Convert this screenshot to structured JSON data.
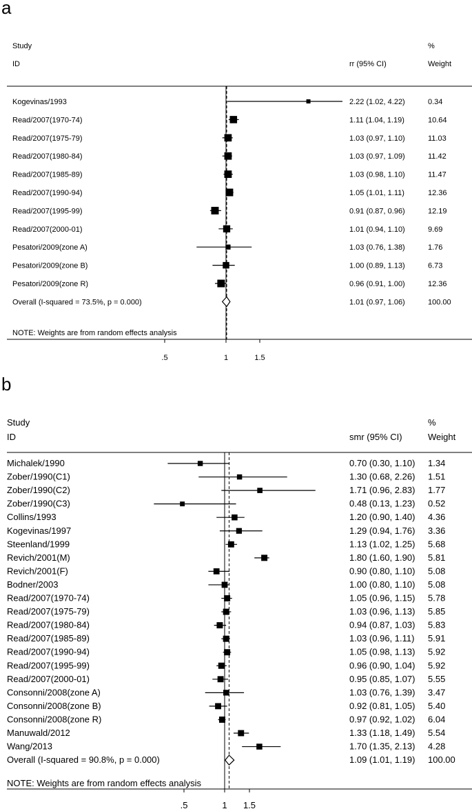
{
  "panels": [
    {
      "letter": "a",
      "hdr_study": "Study",
      "hdr_id": "ID",
      "hdr_est": "rr (95% CI)",
      "hdr_pct": "%",
      "hdr_weight": "Weight",
      "note": "NOTE: Weights are from random effects analysis"
    },
    {
      "letter": "b",
      "hdr_study": "Study",
      "hdr_id": "ID",
      "hdr_est": "smr (95% CI)",
      "hdr_pct": "%",
      "hdr_weight": "Weight",
      "note": "NOTE: Weights are from random effects analysis"
    }
  ],
  "chart_data": [
    {
      "type": "forest",
      "measure": "rr",
      "null_line": 1,
      "pooled_estimate": 1.01,
      "x_ticks": [
        {
          "value": 0.5,
          "label": ".5"
        },
        {
          "value": 1,
          "label": "1"
        },
        {
          "value": 1.5,
          "label": "1.5"
        }
      ],
      "studies": [
        {
          "id": "Kogevinas/1993",
          "est": 2.22,
          "lo": 1.02,
          "hi": 4.22,
          "ci_text": "2.22 (1.02, 4.22)",
          "weight": "0.34",
          "arrow": true
        },
        {
          "id": "Read/2007(1970-74)",
          "est": 1.11,
          "lo": 1.04,
          "hi": 1.19,
          "ci_text": "1.11 (1.04, 1.19)",
          "weight": "10.64"
        },
        {
          "id": "Read/2007(1975-79)",
          "est": 1.03,
          "lo": 0.97,
          "hi": 1.1,
          "ci_text": "1.03 (0.97, 1.10)",
          "weight": "11.03"
        },
        {
          "id": "Read/2007(1980-84)",
          "est": 1.03,
          "lo": 0.97,
          "hi": 1.09,
          "ci_text": "1.03 (0.97, 1.09)",
          "weight": "11.42"
        },
        {
          "id": "Read/2007(1985-89)",
          "est": 1.03,
          "lo": 0.98,
          "hi": 1.1,
          "ci_text": "1.03 (0.98, 1.10)",
          "weight": "11.47"
        },
        {
          "id": "Read/2007(1990-94)",
          "est": 1.05,
          "lo": 1.01,
          "hi": 1.11,
          "ci_text": "1.05 (1.01, 1.11)",
          "weight": "12.36"
        },
        {
          "id": "Read/2007(1995-99)",
          "est": 0.91,
          "lo": 0.87,
          "hi": 0.96,
          "ci_text": "0.91 (0.87, 0.96)",
          "weight": "12.19"
        },
        {
          "id": "Read/2007(2000-01)",
          "est": 1.01,
          "lo": 0.94,
          "hi": 1.1,
          "ci_text": "1.01 (0.94, 1.10)",
          "weight": "9.69"
        },
        {
          "id": "Pesatori/2009(zone A)",
          "est": 1.03,
          "lo": 0.76,
          "hi": 1.38,
          "ci_text": "1.03 (0.76, 1.38)",
          "weight": "1.76"
        },
        {
          "id": "Pesatori/2009(zone B)",
          "est": 1.0,
          "lo": 0.89,
          "hi": 1.13,
          "ci_text": "1.00 (0.89, 1.13)",
          "weight": "6.73"
        },
        {
          "id": "Pesatori/2009(zone R)",
          "est": 0.96,
          "lo": 0.91,
          "hi": 1.0,
          "ci_text": "0.96 (0.91, 1.00)",
          "weight": "12.36"
        }
      ],
      "overall": {
        "id": "Overall  (I-squared = 73.5%, p = 0.000)",
        "est": 1.01,
        "lo": 0.97,
        "hi": 1.06,
        "ci_text": "1.01 (0.97, 1.06)",
        "weight": "100.00"
      }
    },
    {
      "type": "forest",
      "measure": "smr",
      "null_line": 1,
      "pooled_estimate": 1.09,
      "x_ticks": [
        {
          "value": 0.5,
          "label": ".5"
        },
        {
          "value": 1,
          "label": "1"
        },
        {
          "value": 1.5,
          "label": "1.5"
        }
      ],
      "studies": [
        {
          "id": "Michalek/1990",
          "est": 0.7,
          "lo": 0.3,
          "hi": 1.1,
          "ci_text": "0.70 (0.30, 1.10)",
          "weight": "1.34"
        },
        {
          "id": "Zober/1990(C1)",
          "est": 1.3,
          "lo": 0.68,
          "hi": 2.26,
          "ci_text": "1.30 (0.68, 2.26)",
          "weight": "1.51"
        },
        {
          "id": "Zober/1990(C2)",
          "est": 1.71,
          "lo": 0.96,
          "hi": 2.83,
          "ci_text": "1.71 (0.96, 2.83)",
          "weight": "1.77"
        },
        {
          "id": "Zober/1990(C3)",
          "est": 0.48,
          "lo": 0.13,
          "hi": 1.23,
          "ci_text": "0.48 (0.13, 1.23)",
          "weight": "0.52"
        },
        {
          "id": "Collins/1993",
          "est": 1.2,
          "lo": 0.9,
          "hi": 1.4,
          "ci_text": "1.20 (0.90, 1.40)",
          "weight": "4.36"
        },
        {
          "id": "Kogevinas/1997",
          "est": 1.29,
          "lo": 0.94,
          "hi": 1.76,
          "ci_text": "1.29 (0.94, 1.76)",
          "weight": "3.36"
        },
        {
          "id": "Steenland/1999",
          "est": 1.13,
          "lo": 1.02,
          "hi": 1.25,
          "ci_text": "1.13 (1.02, 1.25)",
          "weight": "5.68"
        },
        {
          "id": "Revich/2001(M)",
          "est": 1.8,
          "lo": 1.6,
          "hi": 1.9,
          "ci_text": "1.80 (1.60, 1.90)",
          "weight": "5.81"
        },
        {
          "id": "Revich/2001(F)",
          "est": 0.9,
          "lo": 0.8,
          "hi": 1.1,
          "ci_text": "0.90 (0.80, 1.10)",
          "weight": "5.08"
        },
        {
          "id": "Bodner/2003",
          "est": 1.0,
          "lo": 0.8,
          "hi": 1.1,
          "ci_text": "1.00 (0.80, 1.10)",
          "weight": "5.08"
        },
        {
          "id": "Read/2007(1970-74)",
          "est": 1.05,
          "lo": 0.96,
          "hi": 1.15,
          "ci_text": "1.05 (0.96, 1.15)",
          "weight": "5.78"
        },
        {
          "id": "Read/2007(1975-79)",
          "est": 1.03,
          "lo": 0.96,
          "hi": 1.13,
          "ci_text": "1.03 (0.96, 1.13)",
          "weight": "5.85"
        },
        {
          "id": "Read/2007(1980-84)",
          "est": 0.94,
          "lo": 0.87,
          "hi": 1.03,
          "ci_text": "0.94 (0.87, 1.03)",
          "weight": "5.83"
        },
        {
          "id": "Read/2007(1985-89)",
          "est": 1.03,
          "lo": 0.96,
          "hi": 1.11,
          "ci_text": "1.03 (0.96, 1.11)",
          "weight": "5.91"
        },
        {
          "id": "Read/2007(1990-94)",
          "est": 1.05,
          "lo": 0.98,
          "hi": 1.13,
          "ci_text": "1.05 (0.98, 1.13)",
          "weight": "5.92"
        },
        {
          "id": "Read/2007(1995-99)",
          "est": 0.96,
          "lo": 0.9,
          "hi": 1.04,
          "ci_text": "0.96 (0.90, 1.04)",
          "weight": "5.92"
        },
        {
          "id": "Read/2007(2000-01)",
          "est": 0.95,
          "lo": 0.85,
          "hi": 1.07,
          "ci_text": "0.95 (0.85, 1.07)",
          "weight": "5.55"
        },
        {
          "id": "Consonni/2008(zone A)",
          "est": 1.03,
          "lo": 0.76,
          "hi": 1.39,
          "ci_text": "1.03 (0.76, 1.39)",
          "weight": "3.47"
        },
        {
          "id": "Consonni/2008(zone B)",
          "est": 0.92,
          "lo": 0.81,
          "hi": 1.05,
          "ci_text": "0.92 (0.81, 1.05)",
          "weight": "5.40"
        },
        {
          "id": "Consonni/2008(zone R)",
          "est": 0.97,
          "lo": 0.92,
          "hi": 1.02,
          "ci_text": "0.97 (0.92, 1.02)",
          "weight": "6.04"
        },
        {
          "id": "Manuwald/2012",
          "est": 1.33,
          "lo": 1.18,
          "hi": 1.49,
          "ci_text": "1.33 (1.18, 1.49)",
          "weight": "5.54"
        },
        {
          "id": "Wang/2013",
          "est": 1.7,
          "lo": 1.35,
          "hi": 2.13,
          "ci_text": "1.70 (1.35, 2.13)",
          "weight": "4.28"
        }
      ],
      "overall": {
        "id": "Overall  (I-squared = 90.8%, p = 0.000)",
        "est": 1.09,
        "lo": 1.01,
        "hi": 1.19,
        "ci_text": "1.09 (1.01, 1.19)",
        "weight": "100.00"
      }
    }
  ]
}
